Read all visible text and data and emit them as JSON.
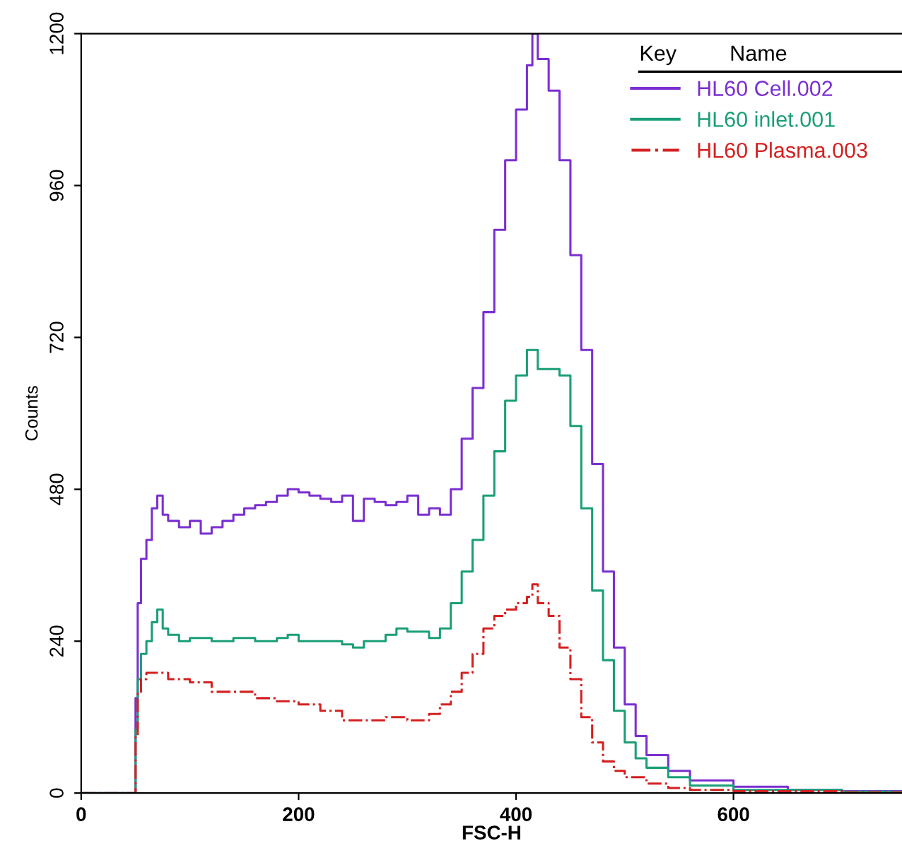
{
  "chart_data": {
    "type": "step",
    "xlabel": "FSC-H",
    "ylabel": "Counts",
    "legend_title": "Key",
    "annotations": [
      "Name"
    ],
    "legend": "top right",
    "xlim": [
      0,
      755
    ],
    "xticks": [
      0,
      200,
      400,
      600
    ],
    "ylim": [
      0,
      1200
    ],
    "yticks": [
      0,
      240,
      480,
      720,
      960,
      1200
    ],
    "grid": false,
    "series": [
      {
        "name": "HL60 Cell.002",
        "color": "#7b2fd0",
        "line_style": "solid",
        "x": [
          0,
          48,
          50,
          52,
          55,
          60,
          65,
          70,
          75,
          80,
          90,
          100,
          110,
          120,
          130,
          140,
          150,
          160,
          170,
          180,
          190,
          200,
          210,
          220,
          230,
          240,
          250,
          260,
          270,
          280,
          290,
          300,
          310,
          320,
          330,
          340,
          350,
          360,
          370,
          380,
          390,
          400,
          410,
          415,
          420,
          430,
          440,
          450,
          460,
          470,
          480,
          490,
          500,
          510,
          520,
          540,
          560,
          600,
          650,
          700,
          755
        ],
        "values": [
          0,
          0,
          150,
          300,
          370,
          400,
          450,
          470,
          440,
          430,
          420,
          430,
          410,
          420,
          430,
          440,
          450,
          455,
          460,
          470,
          480,
          475,
          470,
          465,
          460,
          470,
          430,
          465,
          460,
          455,
          460,
          470,
          440,
          450,
          440,
          480,
          560,
          640,
          760,
          890,
          1000,
          1080,
          1150,
          1200,
          1160,
          1110,
          1000,
          850,
          700,
          520,
          350,
          230,
          140,
          90,
          60,
          35,
          20,
          10,
          5,
          3,
          2
        ]
      },
      {
        "name": "HL60 inlet.001",
        "color": "#1a9e78",
        "line_style": "solid",
        "x": [
          0,
          48,
          50,
          52,
          55,
          60,
          65,
          70,
          75,
          80,
          90,
          100,
          120,
          140,
          160,
          180,
          190,
          200,
          220,
          240,
          250,
          260,
          280,
          290,
          300,
          320,
          330,
          340,
          350,
          360,
          370,
          380,
          390,
          400,
          410,
          420,
          430,
          440,
          450,
          460,
          470,
          480,
          490,
          500,
          510,
          520,
          540,
          560,
          600,
          700,
          755
        ],
        "values": [
          0,
          0,
          100,
          180,
          220,
          240,
          270,
          290,
          260,
          250,
          240,
          245,
          240,
          245,
          240,
          245,
          250,
          240,
          240,
          235,
          230,
          240,
          250,
          260,
          255,
          245,
          260,
          300,
          350,
          400,
          470,
          540,
          620,
          660,
          700,
          670,
          670,
          660,
          580,
          450,
          320,
          210,
          130,
          80,
          55,
          40,
          25,
          12,
          5,
          2,
          1
        ]
      },
      {
        "name": "HL60 Plasma.003",
        "color": "#d42020",
        "line_style": "dashed",
        "x": [
          0,
          48,
          50,
          52,
          55,
          60,
          70,
          80,
          100,
          120,
          140,
          160,
          180,
          200,
          220,
          240,
          260,
          280,
          300,
          320,
          330,
          340,
          350,
          360,
          370,
          380,
          390,
          400,
          410,
          415,
          420,
          430,
          440,
          450,
          460,
          470,
          480,
          490,
          500,
          520,
          540,
          560,
          600,
          700,
          755
        ],
        "values": [
          0,
          0,
          90,
          160,
          180,
          190,
          190,
          180,
          175,
          160,
          160,
          150,
          145,
          140,
          130,
          115,
          115,
          120,
          115,
          125,
          140,
          160,
          190,
          220,
          260,
          280,
          290,
          300,
          310,
          330,
          300,
          280,
          230,
          180,
          120,
          80,
          50,
          35,
          25,
          15,
          8,
          5,
          3,
          1,
          1
        ]
      }
    ]
  }
}
